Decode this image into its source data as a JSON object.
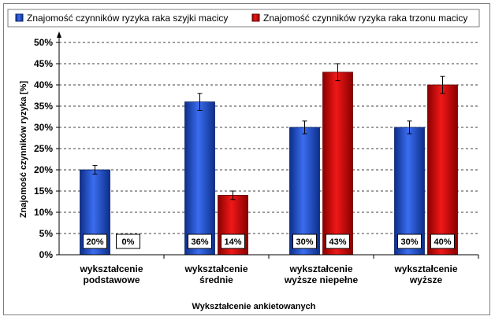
{
  "chart_data": {
    "type": "bar",
    "title": "",
    "xlabel": "Wykształcenie  ankietowanych",
    "ylabel": "Znajomość  czynników  ryzyka  [%]",
    "ylim": [
      0,
      50
    ],
    "y_ticks": [
      "0%",
      "5%",
      "10%",
      "15%",
      "20%",
      "25%",
      "30%",
      "35%",
      "40%",
      "45%",
      "50%"
    ],
    "categories": [
      [
        "wykształcenie",
        "podstawowe"
      ],
      [
        "wykształcenie",
        "średnie"
      ],
      [
        "wykształcenie",
        "wyższe niepełne"
      ],
      [
        "wykształcenie",
        "wyższe"
      ]
    ],
    "series": [
      {
        "name": "Znajomość czynników ryzyka raka szyjki macicy",
        "color": "#1f4fc4",
        "values": [
          20,
          36,
          30,
          30
        ],
        "labels": [
          "20%",
          "36%",
          "30%",
          "30%"
        ],
        "error": [
          1,
          2,
          1.5,
          1.5
        ]
      },
      {
        "name": "Znajomość czynników ryzyka raka trzonu macicy",
        "color": "#cc1111",
        "values": [
          0,
          14,
          43,
          40
        ],
        "labels": [
          "0%",
          "14%",
          "43%",
          "40%"
        ],
        "error": [
          0,
          1,
          2,
          2
        ]
      }
    ],
    "grid": true,
    "legend_position": "top"
  }
}
